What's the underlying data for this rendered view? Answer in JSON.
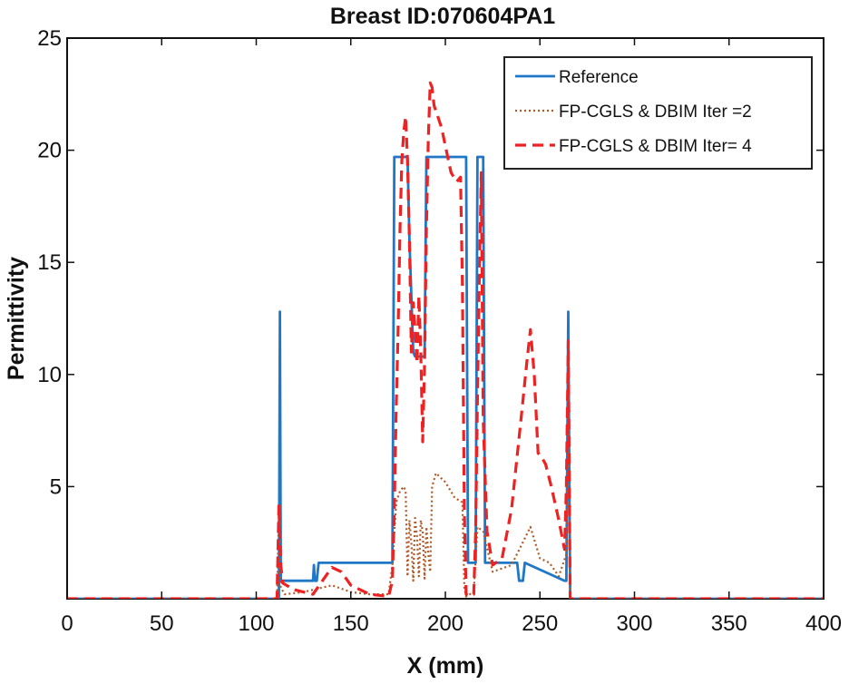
{
  "chart_data": {
    "type": "line",
    "title": "Breast ID:070604PA1",
    "xlabel": "X (mm)",
    "ylabel": "Permittivity",
    "xlim": [
      0,
      400
    ],
    "ylim": [
      0,
      25
    ],
    "xticks": [
      0,
      50,
      100,
      150,
      200,
      250,
      300,
      350,
      400
    ],
    "yticks": [
      5,
      10,
      15,
      20,
      25
    ],
    "grid": false,
    "legend_position": "top-right",
    "series": [
      {
        "name": "Reference",
        "color": "#1f77c8",
        "style": "solid",
        "x": [
          0,
          112,
          112.5,
          113,
          114,
          130,
          130.5,
          131,
          132,
          133,
          134,
          172,
          173,
          180,
          181,
          183,
          184,
          189,
          190,
          192,
          193,
          211,
          212,
          216,
          217,
          220,
          221,
          238,
          239,
          241,
          242,
          263,
          264,
          265,
          266,
          400
        ],
        "y": [
          0,
          0,
          12.8,
          0.8,
          0.8,
          0.8,
          1.5,
          0.8,
          0.8,
          1.6,
          1.6,
          1.6,
          19.7,
          19.7,
          16,
          11,
          10.8,
          10.8,
          19.7,
          19.7,
          19.7,
          19.7,
          1.6,
          1.6,
          19.7,
          19.7,
          1.6,
          1.6,
          0.8,
          0.8,
          1.6,
          0.8,
          0.8,
          12.8,
          0,
          0
        ]
      },
      {
        "name": "FP-CGLS & DBIM Iter =2",
        "color": "#b05a2a",
        "style": "dotted",
        "x": [
          0,
          111,
          112,
          113,
          115,
          125,
          140,
          150,
          160,
          170,
          172,
          174,
          176,
          178,
          179,
          180,
          181,
          182,
          183,
          184,
          185,
          186,
          187,
          188,
          189,
          190,
          191,
          192,
          193,
          195,
          200,
          205,
          209,
          210,
          211,
          215,
          217,
          220,
          225,
          235,
          245,
          250,
          255,
          260,
          264,
          265,
          266,
          400
        ],
        "y": [
          0,
          0,
          4.0,
          0.5,
          0.2,
          0.3,
          0.6,
          0.3,
          0.2,
          0.2,
          1.5,
          4.3,
          4.8,
          5.0,
          4.8,
          1.0,
          3.5,
          2.5,
          0.8,
          3.6,
          2.8,
          1.0,
          3.5,
          3.0,
          0.9,
          3.2,
          2.0,
          1.2,
          5.0,
          5.6,
          5.2,
          4.5,
          4.3,
          0.5,
          0.1,
          0.3,
          3.2,
          3.0,
          1.2,
          1.5,
          3.2,
          1.8,
          1.6,
          1.0,
          2.0,
          10.5,
          0,
          0
        ]
      },
      {
        "name": "FP-CGLS & DBIM Iter= 4",
        "color": "#ee2222",
        "style": "dashed",
        "x": [
          0,
          111,
          112,
          113,
          114,
          120,
          125,
          130,
          135,
          140,
          145,
          150,
          160,
          170,
          172,
          173,
          174,
          175,
          176,
          177,
          178,
          179,
          180,
          181,
          182,
          183,
          184,
          185,
          186,
          187,
          188,
          189,
          190,
          191,
          192,
          193,
          194,
          196,
          198,
          200,
          203,
          206,
          208,
          209,
          210,
          211,
          213,
          215,
          216,
          217,
          218,
          219,
          220,
          222,
          225,
          230,
          235,
          240,
          243,
          245,
          247,
          249,
          251,
          253,
          256,
          260,
          263,
          264,
          265,
          266,
          400
        ],
        "y": [
          0,
          0,
          4.2,
          1.5,
          0.7,
          0.4,
          0.3,
          0.2,
          0.8,
          1.4,
          1.2,
          0.6,
          0.2,
          0.1,
          0.8,
          4.0,
          8.5,
          12.0,
          16.5,
          19.5,
          20.8,
          21.5,
          19.5,
          16.0,
          11.0,
          13.2,
          12.0,
          10.5,
          13.5,
          11.0,
          7.0,
          10.5,
          16.5,
          20.5,
          23.0,
          22.8,
          22.0,
          21.5,
          21.0,
          20.2,
          19.0,
          18.6,
          18.8,
          14.0,
          4.0,
          0.2,
          0.1,
          0.2,
          3.0,
          9.0,
          14.5,
          19.0,
          8.0,
          3.0,
          1.5,
          1.8,
          4.0,
          8.0,
          10.5,
          12.0,
          10.0,
          6.5,
          6.3,
          6.0,
          5.0,
          3.5,
          2.2,
          5.0,
          11.5,
          0,
          0
        ]
      }
    ]
  }
}
